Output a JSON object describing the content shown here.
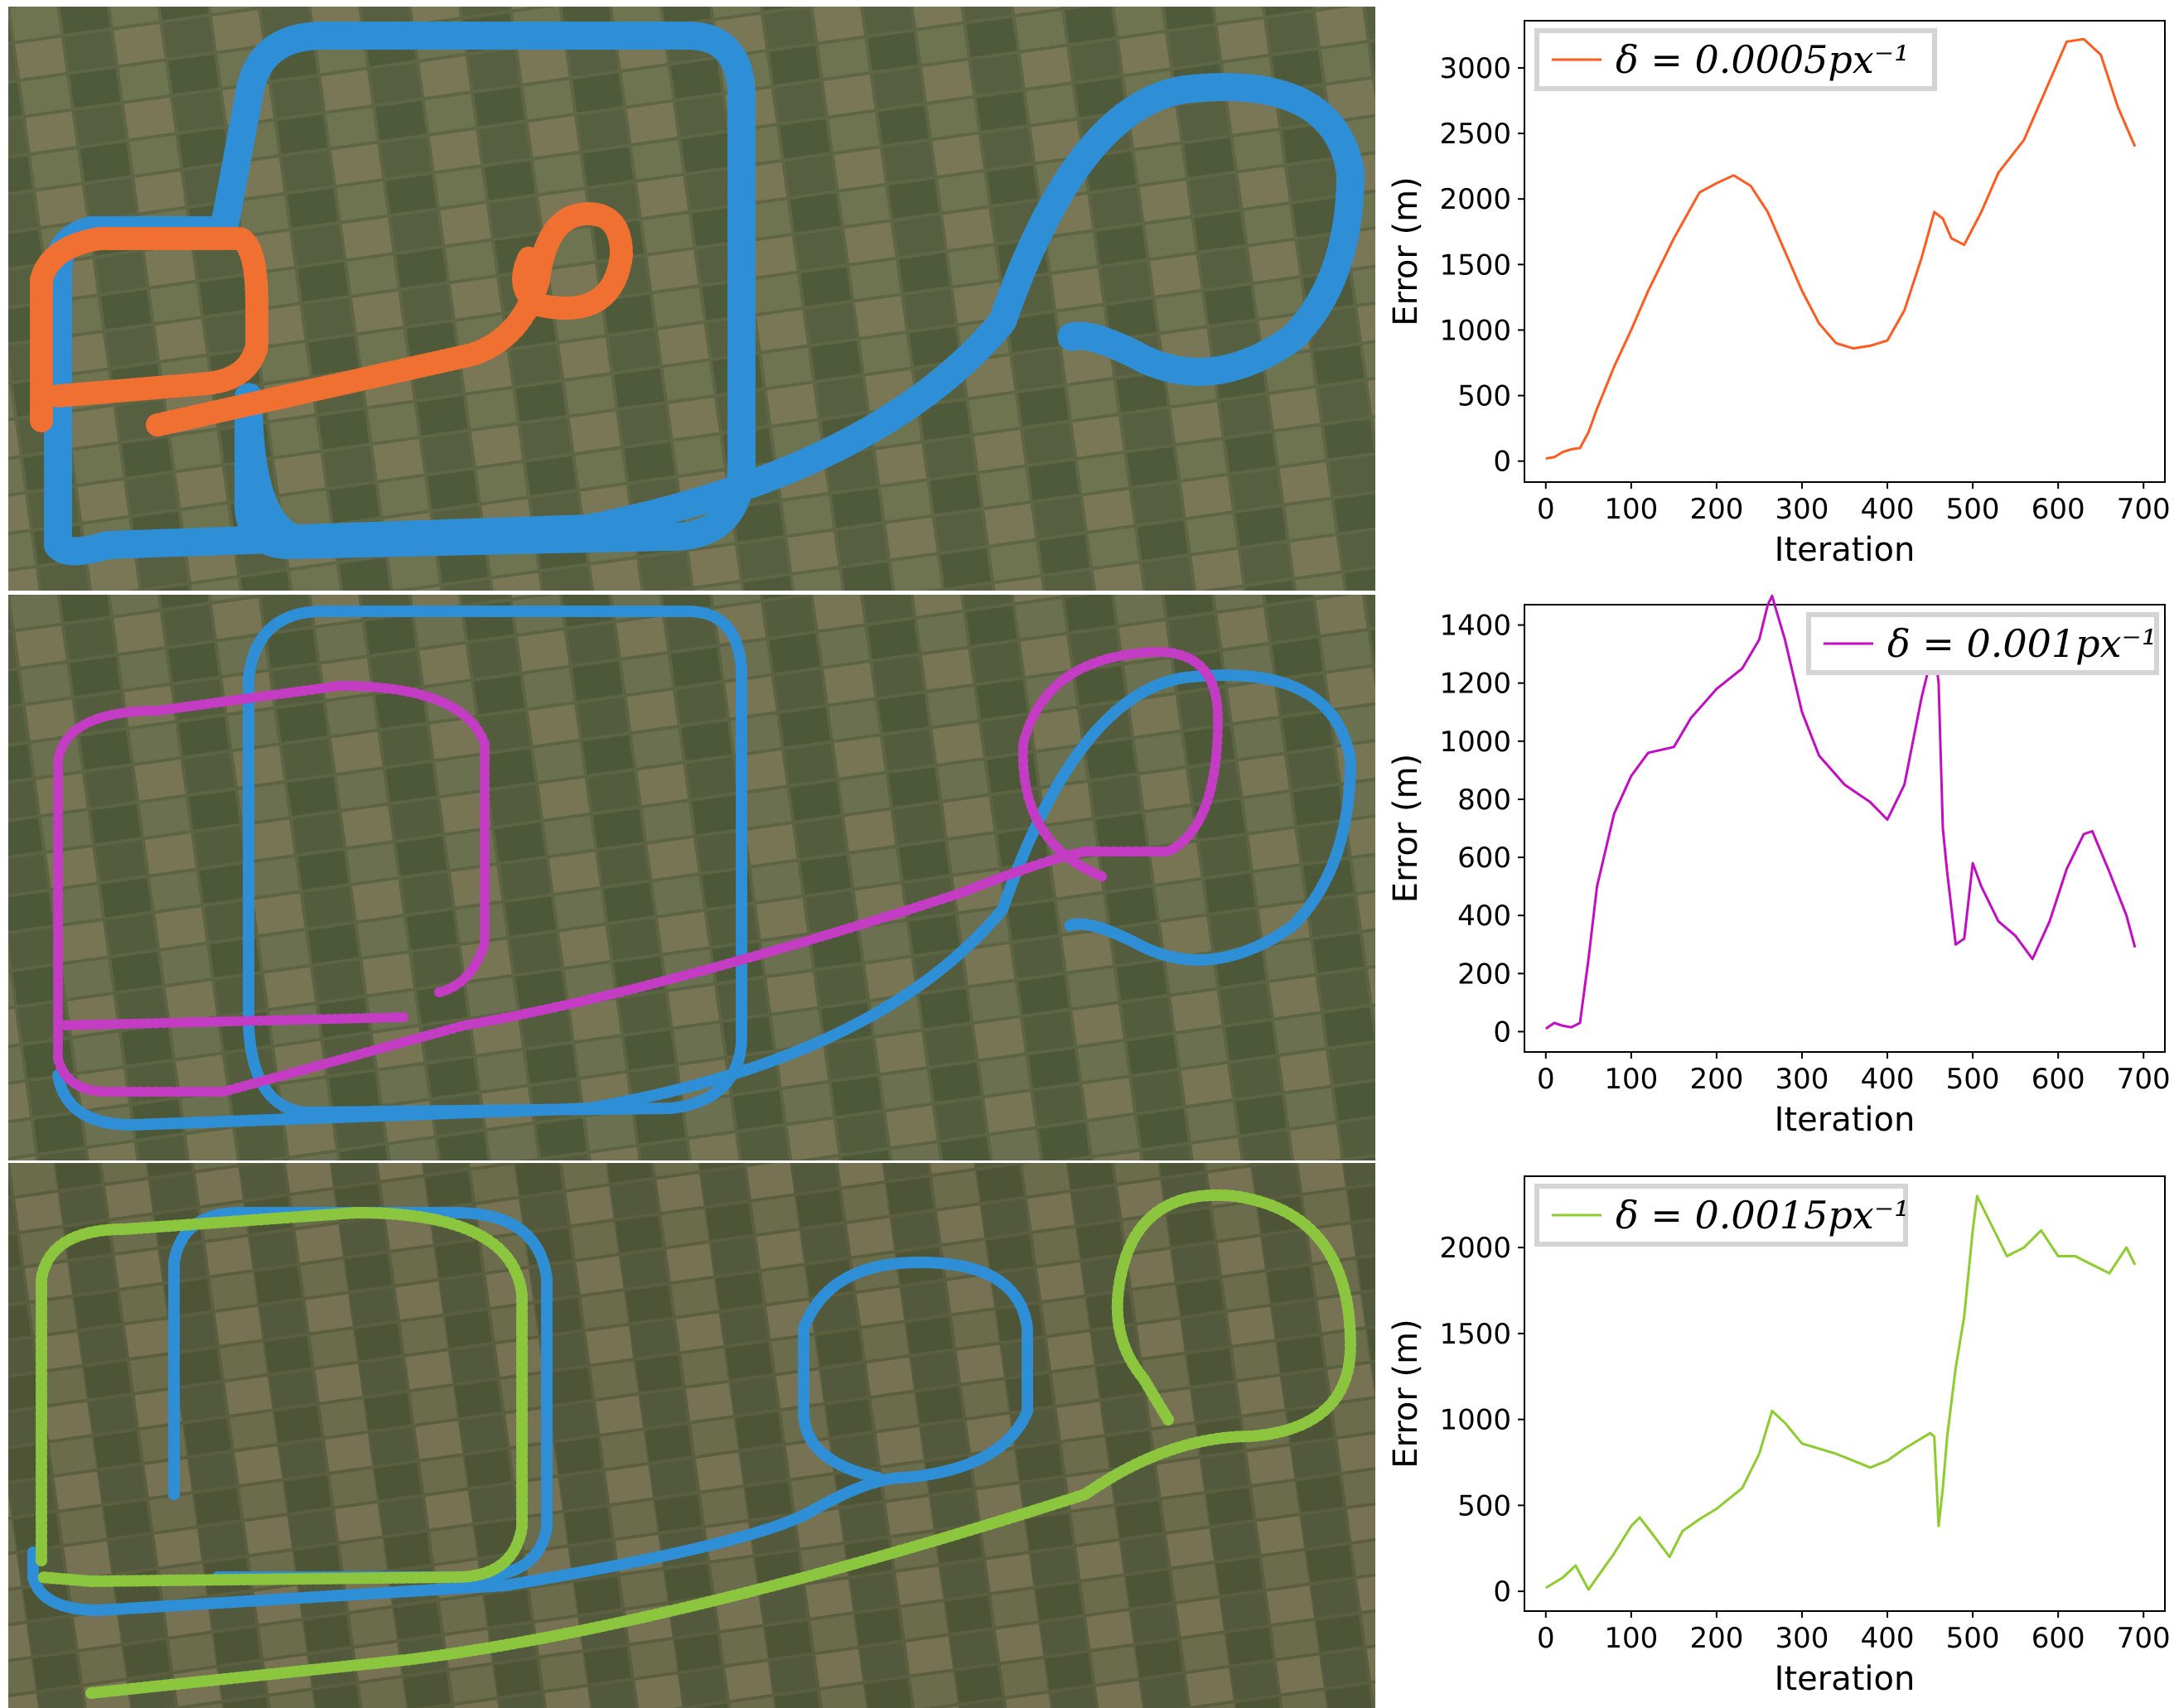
{
  "maps": [
    {
      "id": "map-1",
      "estimate_color": "#e8581c",
      "reference_color": "#2f8fd6"
    },
    {
      "id": "map-2",
      "estimate_color": "#c43cc4",
      "reference_color": "#2f8fd6"
    },
    {
      "id": "map-3",
      "estimate_color": "#8cc63f",
      "reference_color": "#2f8fd6"
    }
  ],
  "chart_data": [
    {
      "type": "line",
      "xlabel": "Iteration",
      "ylabel": "Error (m)",
      "xlim": [
        0,
        700
      ],
      "ylim": [
        0,
        3200
      ],
      "xticks": [
        0,
        100,
        200,
        300,
        400,
        500,
        600,
        700
      ],
      "yticks": [
        0,
        500,
        1000,
        1500,
        2000,
        2500,
        3000
      ],
      "legend_position": "top-left",
      "series": [
        {
          "name": "δ = 0.0005px⁻¹",
          "color": "#ff5a1f",
          "x": [
            0,
            10,
            20,
            30,
            40,
            50,
            60,
            80,
            100,
            120,
            150,
            180,
            200,
            220,
            240,
            260,
            280,
            300,
            320,
            340,
            360,
            380,
            400,
            420,
            440,
            455,
            465,
            475,
            490,
            510,
            530,
            560,
            590,
            610,
            630,
            650,
            670,
            690
          ],
          "y": [
            20,
            30,
            70,
            90,
            100,
            220,
            400,
            720,
            1000,
            1300,
            1700,
            2050,
            2120,
            2180,
            2100,
            1900,
            1600,
            1300,
            1050,
            900,
            860,
            880,
            920,
            1150,
            1550,
            1900,
            1850,
            1700,
            1650,
            1900,
            2200,
            2450,
            2900,
            3200,
            3220,
            3100,
            2700,
            2400
          ]
        }
      ]
    },
    {
      "type": "line",
      "xlabel": "Iteration",
      "ylabel": "Error (m)",
      "xlim": [
        0,
        700
      ],
      "ylim": [
        0,
        1400
      ],
      "xticks": [
        0,
        100,
        200,
        300,
        400,
        500,
        600,
        700
      ],
      "yticks": [
        0,
        200,
        400,
        600,
        800,
        1000,
        1200,
        1400
      ],
      "legend_position": "top-right",
      "series": [
        {
          "name": "δ = 0.001px⁻¹",
          "color": "#c40cc4",
          "x": [
            0,
            10,
            20,
            30,
            40,
            50,
            60,
            80,
            100,
            120,
            150,
            170,
            200,
            230,
            250,
            260,
            265,
            270,
            280,
            300,
            320,
            350,
            380,
            400,
            420,
            440,
            455,
            460,
            465,
            470,
            480,
            490,
            500,
            510,
            530,
            550,
            570,
            590,
            610,
            630,
            640,
            660,
            680,
            690
          ],
          "y": [
            10,
            30,
            20,
            15,
            30,
            250,
            500,
            750,
            880,
            960,
            980,
            1080,
            1180,
            1250,
            1350,
            1470,
            1500,
            1450,
            1350,
            1100,
            950,
            850,
            790,
            730,
            850,
            1150,
            1330,
            1200,
            700,
            550,
            300,
            320,
            580,
            500,
            380,
            330,
            250,
            380,
            560,
            680,
            690,
            550,
            400,
            290
          ]
        }
      ]
    },
    {
      "type": "line",
      "xlabel": "Iteration",
      "ylabel": "Error (m)",
      "xlim": [
        0,
        700
      ],
      "ylim": [
        0,
        2300
      ],
      "xticks": [
        0,
        100,
        200,
        300,
        400,
        500,
        600,
        700
      ],
      "yticks": [
        0,
        500,
        1000,
        1500,
        2000
      ],
      "legend_position": "top-left",
      "series": [
        {
          "name": "δ = 0.0015px⁻¹",
          "color": "#8ccd2c",
          "x": [
            0,
            20,
            35,
            50,
            60,
            80,
            100,
            110,
            130,
            145,
            160,
            180,
            200,
            230,
            250,
            265,
            280,
            300,
            340,
            380,
            400,
            420,
            450,
            455,
            460,
            465,
            470,
            480,
            490,
            500,
            505,
            520,
            540,
            560,
            580,
            600,
            620,
            640,
            660,
            680,
            690
          ],
          "y": [
            20,
            80,
            150,
            10,
            80,
            220,
            380,
            430,
            300,
            200,
            350,
            420,
            480,
            600,
            800,
            1050,
            980,
            860,
            800,
            720,
            760,
            830,
            920,
            900,
            380,
            600,
            900,
            1300,
            1600,
            2100,
            2300,
            2150,
            1950,
            2000,
            2100,
            1950,
            1950,
            1900,
            1850,
            2000,
            1900
          ]
        }
      ]
    }
  ]
}
